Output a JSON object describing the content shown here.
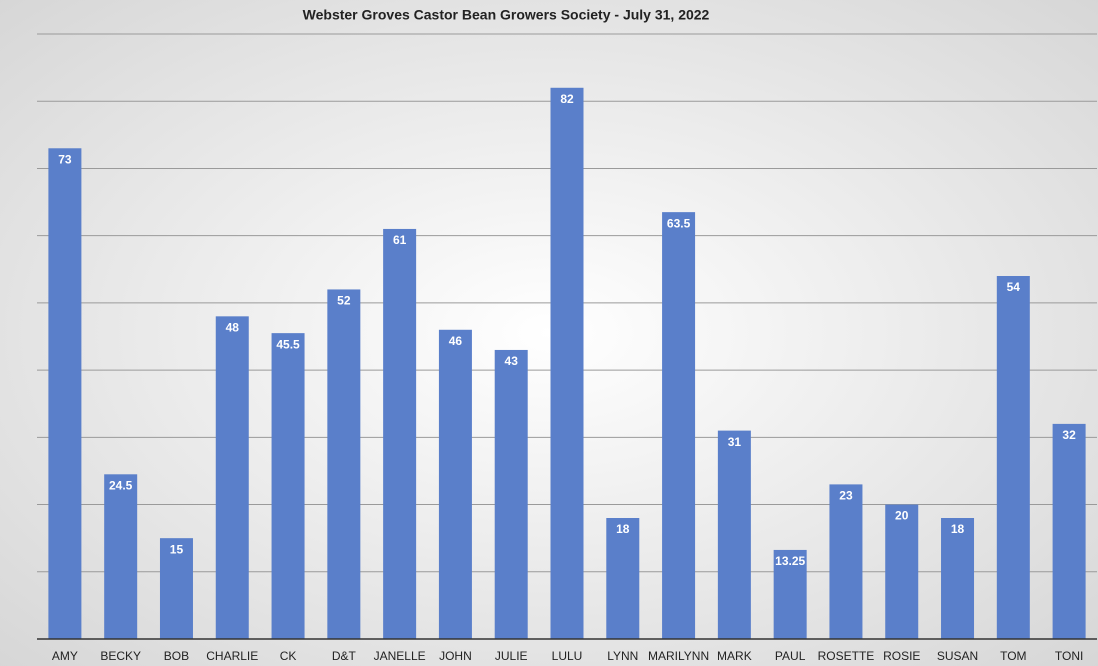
{
  "chart_data": {
    "type": "bar",
    "title": "Webster Groves Castor Bean Growers Society - July 31, 2022",
    "categories": [
      "AMY",
      "BECKY",
      "BOB",
      "CHARLIE",
      "CK",
      "D&T",
      "JANELLE",
      "JOHN",
      "JULIE",
      "LULU",
      "LYNN",
      "MARILYNN",
      "MARK",
      "PAUL",
      "ROSETTE",
      "ROSIE",
      "SUSAN",
      "TOM",
      "TONI"
    ],
    "values": [
      73,
      24.5,
      15,
      48,
      45.5,
      52,
      61,
      46,
      43,
      82,
      18,
      63.5,
      31,
      13.25,
      23,
      20,
      18,
      54,
      32
    ],
    "color": "#5a7fca",
    "ylim": [
      0,
      90
    ],
    "yticks": [
      0,
      10,
      20,
      30,
      40,
      50,
      60,
      70,
      80,
      90
    ],
    "grid": true
  }
}
